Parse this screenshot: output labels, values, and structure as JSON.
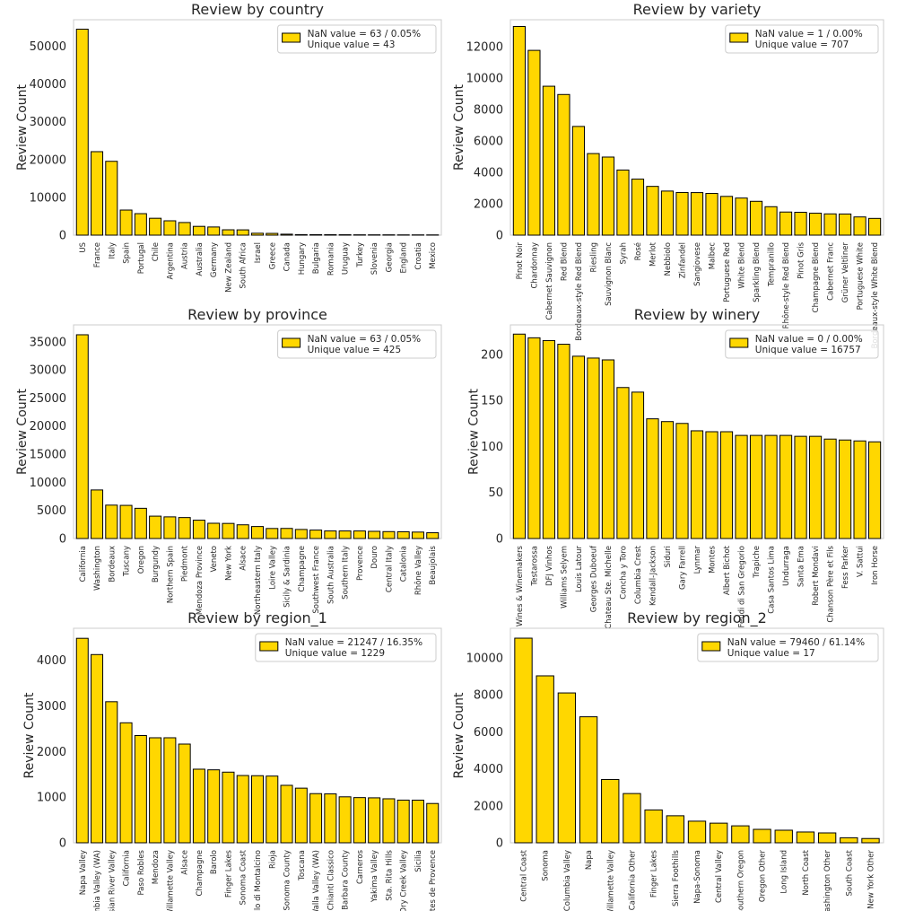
{
  "chart_data": [
    {
      "type": "bar",
      "title": "Review by country",
      "ylabel": "Review Count",
      "ylim": [
        0,
        57000
      ],
      "yticks": [
        0,
        10000,
        20000,
        30000,
        40000,
        50000
      ],
      "legend": {
        "placement": "top-right",
        "lines": [
          "NaN value = 63 / 0.05%",
          "Unique value = 43"
        ]
      },
      "bar_color": "#FFD700",
      "categories": [
        "US",
        "France",
        "Italy",
        "Spain",
        "Portugal",
        "Chile",
        "Argentina",
        "Austria",
        "Australia",
        "Germany",
        "New Zealand",
        "South Africa",
        "Israel",
        "Greece",
        "Canada",
        "Hungary",
        "Bulgaria",
        "Romania",
        "Uruguay",
        "Turkey",
        "Slovenia",
        "Georgia",
        "England",
        "Croatia",
        "Mexico"
      ],
      "values": [
        54504,
        22093,
        19540,
        6645,
        5691,
        4472,
        3800,
        3345,
        2329,
        2165,
        1419,
        1401,
        505,
        466,
        257,
        146,
        141,
        120,
        109,
        90,
        87,
        86,
        74,
        73,
        70
      ]
    },
    {
      "type": "bar",
      "title": "Review by variety",
      "ylabel": "Review Count",
      "ylim": [
        0,
        13700
      ],
      "yticks": [
        0,
        2000,
        4000,
        6000,
        8000,
        10000,
        12000
      ],
      "legend": {
        "placement": "top-right",
        "lines": [
          "NaN value = 1 / 0.00%",
          "Unique value = 707"
        ]
      },
      "bar_color": "#FFD700",
      "categories": [
        "Pinot Noir",
        "Chardonnay",
        "Cabernet Sauvignon",
        "Red Blend",
        "Bordeaux-style Red Blend",
        "Riesling",
        "Sauvignon Blanc",
        "Syrah",
        "Rosé",
        "Merlot",
        "Nebbiolo",
        "Zinfandel",
        "Sangiovese",
        "Malbec",
        "Portuguese Red",
        "White Blend",
        "Sparkling Blend",
        "Tempranillo",
        "Rhône-style Red Blend",
        "Pinot Gris",
        "Champagne Blend",
        "Cabernet Franc",
        "Grüner Veltliner",
        "Portuguese White",
        "Bordeaux-style White Blend"
      ],
      "values": [
        13272,
        11753,
        9472,
        8946,
        6915,
        5189,
        4967,
        4142,
        3564,
        3102,
        2804,
        2714,
        2707,
        2652,
        2466,
        2360,
        2153,
        1810,
        1471,
        1455,
        1396,
        1353,
        1345,
        1159,
        1066
      ]
    },
    {
      "type": "bar",
      "title": "Review by province",
      "ylabel": "Review Count",
      "ylim": [
        0,
        38000
      ],
      "yticks": [
        0,
        5000,
        10000,
        15000,
        20000,
        25000,
        30000,
        35000
      ],
      "legend": {
        "placement": "top-right",
        "lines": [
          "NaN value = 63 / 0.05%",
          "Unique value = 425"
        ]
      },
      "bar_color": "#FFD700",
      "categories": [
        "California",
        "Washington",
        "Bordeaux",
        "Tuscany",
        "Oregon",
        "Burgundy",
        "Northern Spain",
        "Piedmont",
        "Mendoza Province",
        "Veneto",
        "New York",
        "Alsace",
        "Northeastern Italy",
        "Loire Valley",
        "Sicily & Sardinia",
        "Champagne",
        "Southwest France",
        "South Australia",
        "Southern Italy",
        "Provence",
        "Douro",
        "Central Italy",
        "Catalonia",
        "Rhône Valley",
        "Beaujolais"
      ],
      "values": [
        36247,
        8639,
        5941,
        5897,
        5373,
        3980,
        3851,
        3729,
        3264,
        2716,
        2688,
        2440,
        2138,
        1786,
        1797,
        1613,
        1503,
        1349,
        1349,
        1346,
        1281,
        1233,
        1203,
        1146,
        1029
      ]
    },
    {
      "type": "bar",
      "title": "Review by winery",
      "ylabel": "Review Count",
      "ylim": [
        0,
        232
      ],
      "yticks": [
        0,
        50,
        100,
        150,
        200
      ],
      "legend": {
        "placement": "top-right",
        "lines": [
          "NaN value = 0 / 0.00%",
          "Unique value = 16757"
        ]
      },
      "bar_color": "#FFD700",
      "categories": [
        "Wines & Winemakers",
        "Testarossa",
        "DFJ Vinhos",
        "Williams Selyem",
        "Louis Latour",
        "Georges Duboeuf",
        "Chateau Ste. Michelle",
        "Concha y Toro",
        "Columbia Crest",
        "Kendall-Jackson",
        "Siduri",
        "Gary Farrell",
        "Lynmar",
        "Montes",
        "Albert Bichot",
        "Feudi di San Gregorio",
        "Trapiche",
        "Casa Santos Lima",
        "Undurraga",
        "Santa Ema",
        "Robert Mondavi",
        "Chanson Père et Fils",
        "Fess Parker",
        "V. Sattui",
        "Iron Horse"
      ],
      "values": [
        222,
        218,
        215,
        211,
        198,
        196,
        194,
        164,
        159,
        130,
        127,
        125,
        117,
        116,
        116,
        112,
        112,
        112,
        112,
        111,
        111,
        108,
        107,
        106,
        105
      ]
    },
    {
      "type": "bar",
      "title": "Review by region_1",
      "ylabel": "Review Count",
      "ylim": [
        0,
        4700
      ],
      "yticks": [
        0,
        1000,
        2000,
        3000,
        4000
      ],
      "legend": {
        "placement": "top-right",
        "lines": [
          "NaN value = 21247 / 16.35%",
          "Unique value = 1229"
        ]
      },
      "bar_color": "#FFD700",
      "categories": [
        "Napa Valley",
        "Columbia Valley (WA)",
        "Russian River Valley",
        "California",
        "Paso Robles",
        "Mendoza",
        "Willamette Valley",
        "Alsace",
        "Champagne",
        "Barolo",
        "Finger Lakes",
        "Sonoma Coast",
        "Brunello di Montalcino",
        "Rioja",
        "Sonoma County",
        "Toscana",
        "Walla Walla Valley (WA)",
        "Chianti Classico",
        "Santa Barbara County",
        "Carneros",
        "Yakima Valley",
        "Sta. Rita Hills",
        "Dry Creek Valley",
        "Sicilia",
        "Côtes de Provence"
      ],
      "values": [
        4480,
        4124,
        3091,
        2629,
        2350,
        2301,
        2301,
        2163,
        1613,
        1599,
        1548,
        1474,
        1470,
        1462,
        1259,
        1197,
        1077,
        1072,
        1007,
        990,
        985,
        964,
        935,
        934,
        861
      ]
    },
    {
      "type": "bar",
      "title": "Review by region_2",
      "ylabel": "Review Count",
      "ylim": [
        0,
        11600
      ],
      "yticks": [
        0,
        2000,
        4000,
        6000,
        8000,
        10000
      ],
      "legend": {
        "placement": "top-right",
        "lines": [
          "NaN value = 79460 / 61.14%",
          "Unique value = 17"
        ]
      },
      "bar_color": "#FFD700",
      "categories": [
        "Central Coast",
        "Sonoma",
        "Columbia Valley",
        "Napa",
        "Willamette Valley",
        "California Other",
        "Finger Lakes",
        "Sierra Foothills",
        "Napa-Sonoma",
        "Central Valley",
        "Southern Oregon",
        "Oregon Other",
        "Long Island",
        "North Coast",
        "Washington Other",
        "South Coast",
        "New York Other"
      ],
      "values": [
        11065,
        9028,
        8103,
        6814,
        3423,
        2663,
        1777,
        1462,
        1169,
        1062,
        917,
        727,
        680,
        584,
        534,
        272,
        231
      ]
    }
  ]
}
